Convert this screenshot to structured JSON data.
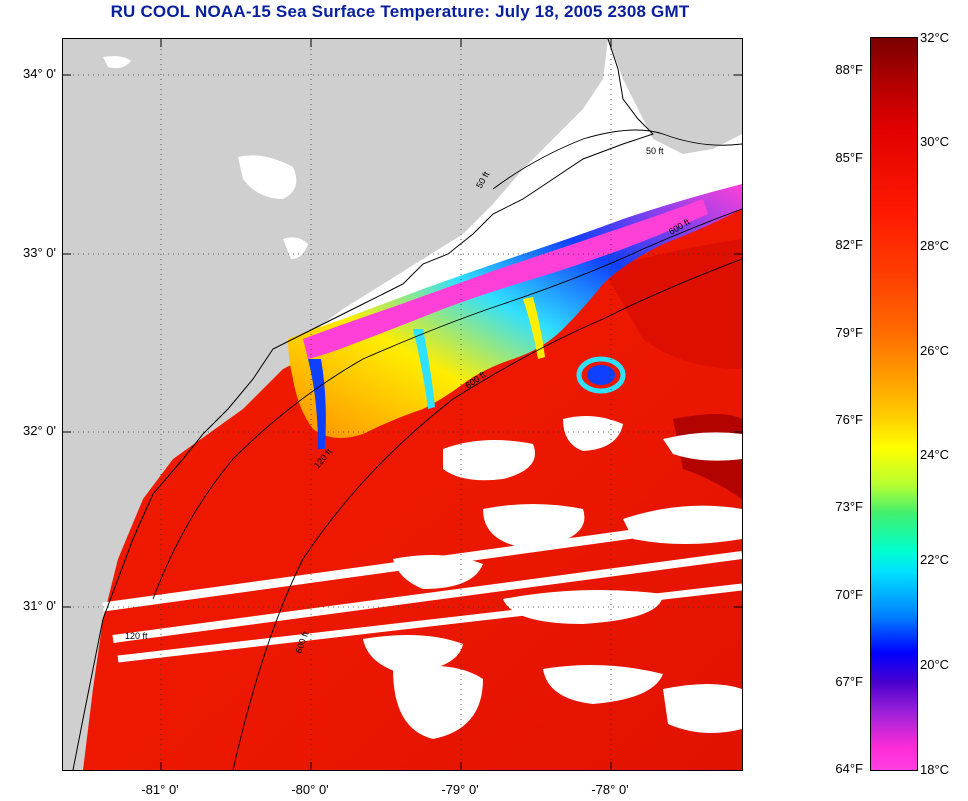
{
  "title": "RU COOL  NOAA-15  Sea Surface Temperature:  July 18, 2005 2308 GMT",
  "latitude_labels": [
    "34° 0'",
    "33° 0'",
    "32° 0'",
    "31° 0'"
  ],
  "longitude_labels": [
    "-81° 0'",
    "-80° 0'",
    "-79° 0'",
    "-78° 0'"
  ],
  "isobath_labels": [
    "50 ft",
    "50 ft",
    "600 ft",
    "120 ft",
    "600 ft",
    "120 ft",
    "600 ft"
  ],
  "colorbar": {
    "fahrenheit": [
      "88°F",
      "85°F",
      "82°F",
      "79°F",
      "76°F",
      "73°F",
      "70°F",
      "67°F",
      "64°F"
    ],
    "celsius": [
      "32°C",
      "30°C",
      "28°C",
      "26°C",
      "24°C",
      "22°C",
      "20°C",
      "18°C"
    ]
  },
  "colors": {
    "title": "#0a1f9c",
    "land": "#cfcfcf",
    "warm_water": "#ee1a00",
    "cold_upwelling": "#ff40d8",
    "cloud": "#ffffff"
  }
}
